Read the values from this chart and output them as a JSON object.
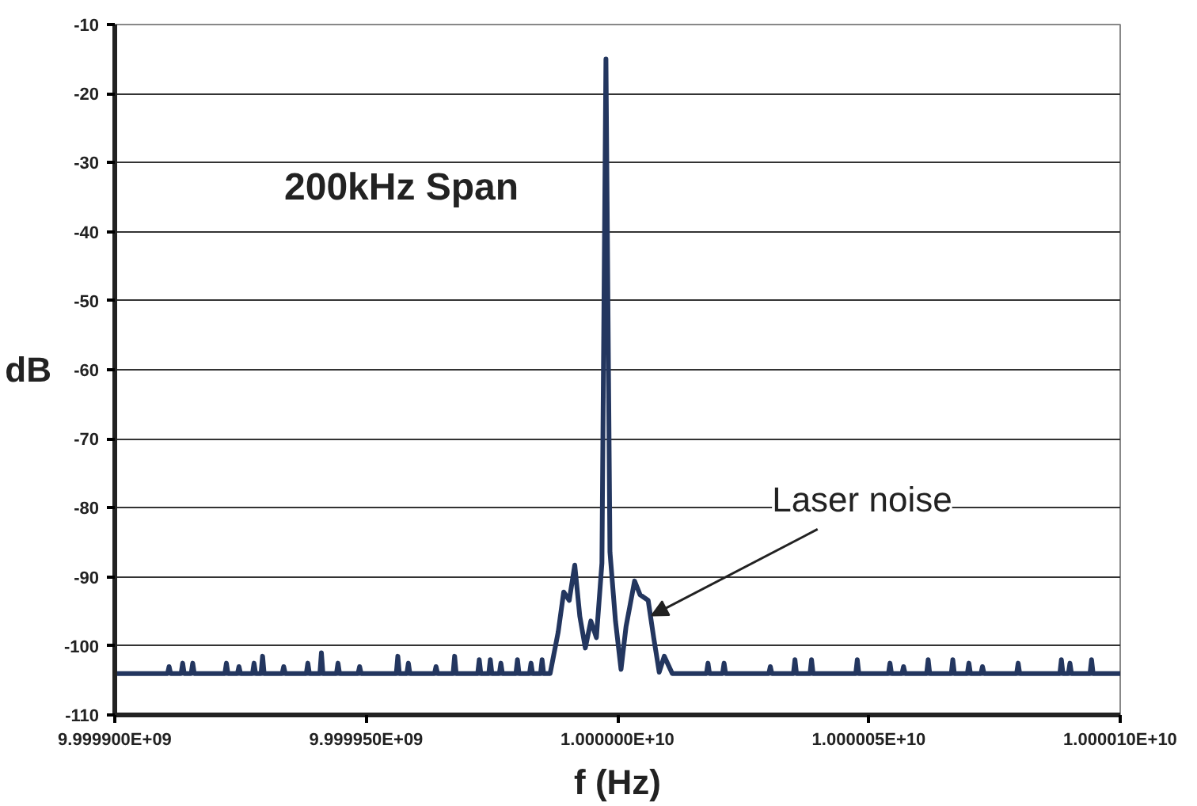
{
  "chart_data": {
    "type": "line",
    "xlabel": "f (Hz)",
    "ylabel": "dB",
    "annotations": [
      "200kHz Span",
      {
        "text": "Laser noise",
        "x": 10000006800,
        "y": -95.6
      }
    ],
    "xlim": [
      9999900000,
      10000100000
    ],
    "xticks": [
      {
        "value": 9999900000,
        "label": "9.999900E+09"
      },
      {
        "value": 9999950000,
        "label": "9.999950E+09"
      },
      {
        "value": 10000000000,
        "label": "1.000000E+10"
      },
      {
        "value": 10000050000,
        "label": "1.000005E+10"
      },
      {
        "value": 10000100000,
        "label": "1.000010E+10"
      }
    ],
    "ylim": [
      -110,
      -10
    ],
    "yticks": [
      -110,
      -100,
      -90,
      -80,
      -70,
      -60,
      -50,
      -40,
      -30,
      -20,
      -10
    ],
    "grid": "y",
    "marker": "none",
    "line_style": "solid",
    "series": [
      {
        "color": "#23365f",
        "x": [
          9999900000,
          9999910500,
          9999910800,
          9999911100,
          9999913200,
          9999913500,
          9999913800,
          9999915200,
          9999915500,
          9999915800,
          9999921900,
          9999922200,
          9999922500,
          9999924400,
          9999924700,
          9999925000,
          9999927400,
          9999927700,
          9999928000,
          9999929100,
          9999929400,
          9999929700,
          9999933300,
          9999933600,
          9999933900,
          9999938100,
          9999938400,
          9999938700,
          9999940800,
          9999941100,
          9999941400,
          9999944100,
          9999944400,
          9999944700,
          9999948400,
          9999948700,
          9999949000,
          9999956000,
          9999956300,
          9999956600,
          9999958100,
          9999958400,
          9999958700,
          9999963600,
          9999963900,
          9999964200,
          9999967300,
          9999967600,
          9999967900,
          9999972200,
          9999972500,
          9999972800,
          9999974400,
          9999974700,
          9999975000,
          9999976500,
          9999976800,
          9999977100,
          9999979800,
          9999980100,
          9999980400,
          9999982500,
          9999982800,
          9999983100,
          9999984700,
          9999985000,
          9999985300,
          9999986600,
          9999988200,
          9999989300,
          9999990400,
          9999991500,
          9999992500,
          9999993600,
          9999994700,
          9999995800,
          9999996900,
          9999997700,
          9999998500,
          9999999600,
          10000000700,
          10000001700,
          10000003400,
          10000004500,
          10000006100,
          10000007200,
          10000008300,
          10000009300,
          10000010900,
          10000017700,
          10000018000,
          10000018300,
          10000020900,
          10000021200,
          10000021500,
          10000030100,
          10000030400,
          10000030700,
          10000035000,
          10000035300,
          10000035600,
          10000038300,
          10000038600,
          10000038900,
          10000047400,
          10000047700,
          10000048000,
          10000053900,
          10000054200,
          10000054500,
          10000056600,
          10000056900,
          10000057200,
          10000061500,
          10000061800,
          10000062100,
          10000066400,
          10000066700,
          10000067000,
          10000069600,
          10000069900,
          10000070200,
          10000072300,
          10000072600,
          10000072900,
          10000079400,
          10000079700,
          10000080000,
          10000088000,
          10000088300,
          10000088600,
          10000089700,
          10000090000,
          10000090300,
          10000094000,
          10000094300,
          10000094600,
          10000100000
        ],
        "values": [
          -104,
          -104,
          -103,
          -104,
          -104,
          -102.5,
          -104,
          -104,
          -102.5,
          -104,
          -104,
          -102.5,
          -104,
          -104,
          -103,
          -104,
          -104,
          -102.5,
          -104,
          -104,
          -101.5,
          -104,
          -104,
          -103,
          -104,
          -104,
          -102.5,
          -104,
          -104,
          -101,
          -104,
          -104,
          -102.5,
          -104,
          -104,
          -103,
          -104,
          -104,
          -101.5,
          -104,
          -104,
          -102.5,
          -104,
          -104,
          -103,
          -104,
          -104,
          -101.5,
          -104,
          -104,
          -102,
          -104,
          -104,
          -102,
          -104,
          -104,
          -102.5,
          -104,
          -104,
          -102,
          -104,
          -104,
          -102.5,
          -104,
          -104,
          -102,
          -104,
          -104,
          -98,
          -92.2,
          -93.4,
          -88.3,
          -95.7,
          -100.3,
          -96.4,
          -98.8,
          -88,
          -15,
          -86.4,
          -96.4,
          -103.4,
          -97.2,
          -90.6,
          -92.6,
          -93.4,
          -98.8,
          -103.8,
          -101.5,
          -104,
          -104,
          -102.5,
          -104,
          -104,
          -102.5,
          -104,
          -104,
          -103,
          -104,
          -104,
          -102,
          -104,
          -104,
          -102,
          -104,
          -104,
          -102,
          -104,
          -104,
          -102.5,
          -104,
          -104,
          -103,
          -104,
          -104,
          -102,
          -104,
          -104,
          -102,
          -104,
          -104,
          -102.5,
          -104,
          -104,
          -103,
          -104,
          -104,
          -102.5,
          -104,
          -104,
          -102,
          -104,
          -104,
          -102.5,
          -104,
          -104,
          -102,
          -104,
          -104
        ]
      }
    ]
  }
}
